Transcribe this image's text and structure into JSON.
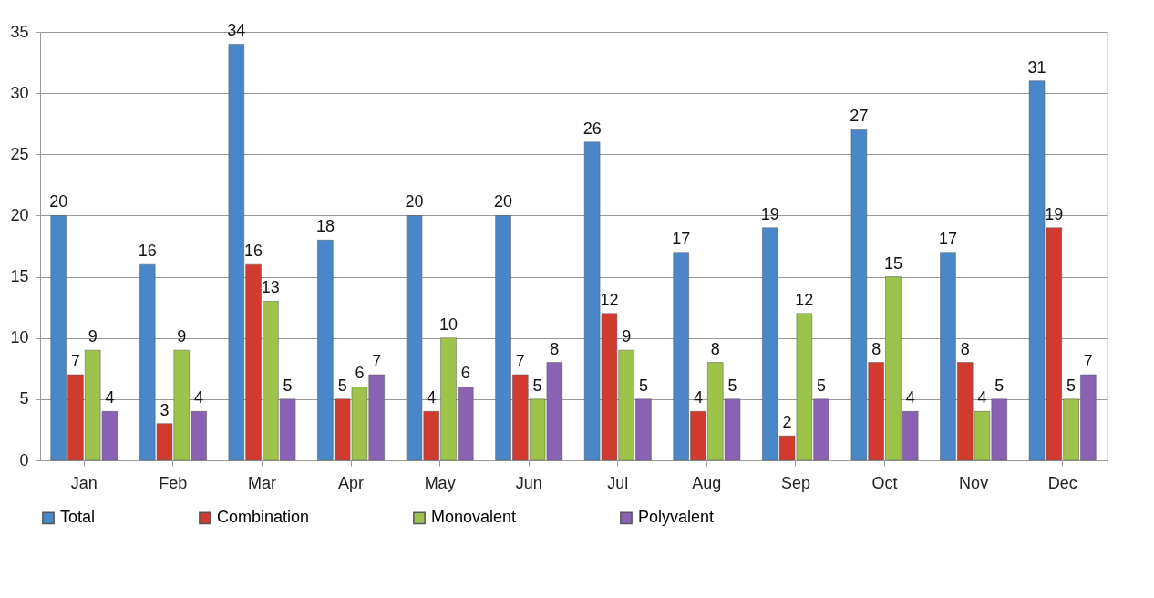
{
  "chart_data": {
    "type": "bar",
    "categories": [
      "Jan",
      "Feb",
      "Mar",
      "Apr",
      "May",
      "Jun",
      "Jul",
      "Aug",
      "Sep",
      "Oct",
      "Nov",
      "Dec"
    ],
    "series": [
      {
        "name": "Total",
        "color": "#4a87c9",
        "values": [
          20,
          16,
          34,
          18,
          20,
          20,
          26,
          17,
          19,
          27,
          17,
          31
        ]
      },
      {
        "name": "Combination",
        "color": "#d13a2f",
        "values": [
          7,
          3,
          16,
          5,
          4,
          7,
          12,
          4,
          2,
          8,
          8,
          19
        ]
      },
      {
        "name": "Monovalent",
        "color": "#9dc34a",
        "values": [
          9,
          9,
          13,
          6,
          10,
          5,
          9,
          8,
          12,
          15,
          4,
          5
        ]
      },
      {
        "name": "Polyvalent",
        "color": "#8a62b4",
        "values": [
          4,
          4,
          5,
          7,
          6,
          8,
          5,
          5,
          5,
          4,
          5,
          7
        ]
      }
    ],
    "ylim": [
      0,
      35
    ],
    "yticks": [
      0,
      5,
      10,
      15,
      20,
      25,
      30,
      35
    ],
    "grid": "y",
    "legend": "bottom",
    "data_labels": true
  }
}
